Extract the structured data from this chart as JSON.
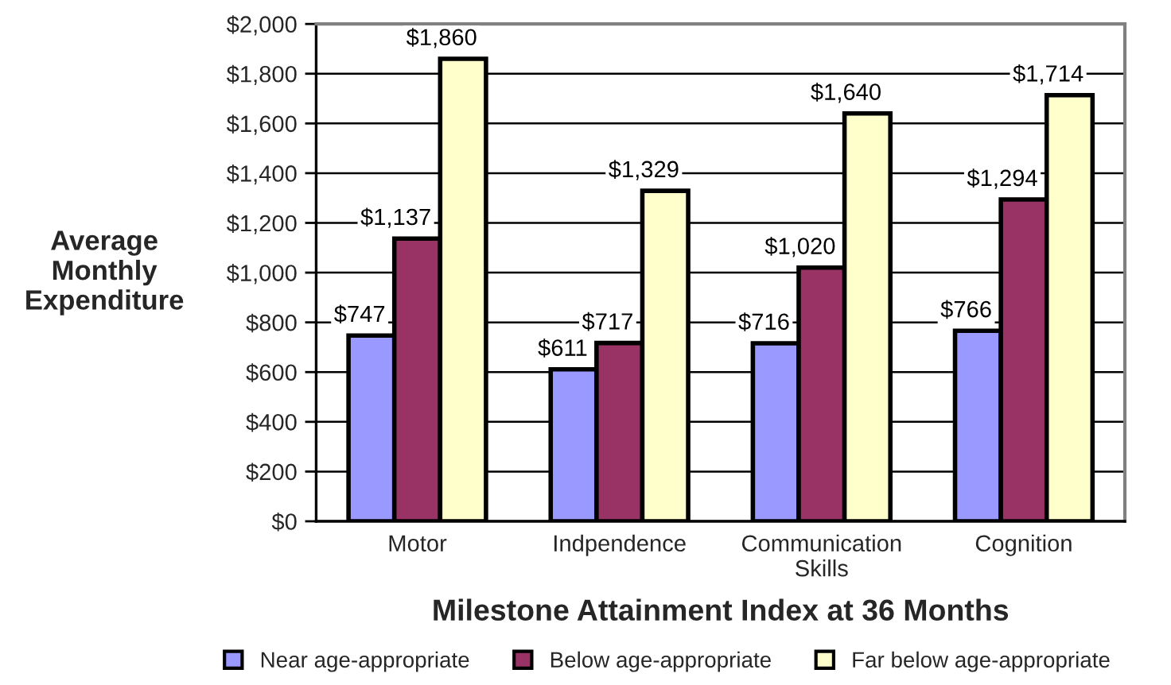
{
  "chart_data": {
    "type": "bar",
    "xlabel": "Milestone Attainment Index at 36 Months",
    "ylabel": "Average Monthly Expenditure",
    "categories": [
      "Motor",
      "Indpendence",
      "Communication Skills",
      "Cognition"
    ],
    "series": [
      {
        "name": "Near age-appropriate",
        "color": "#9999ff",
        "values": [
          747,
          611,
          716,
          766
        ],
        "value_labels": [
          "$747",
          "$611",
          "$716",
          "$766"
        ]
      },
      {
        "name": "Below age-appropriate",
        "color": "#993366",
        "values": [
          1137,
          717,
          1020,
          1294
        ],
        "value_labels": [
          "$1,137",
          "$717",
          "$1,020",
          "$1,294"
        ]
      },
      {
        "name": "Far below age-appropriate",
        "color": "#ffffcc",
        "values": [
          1860,
          1329,
          1640,
          1714
        ],
        "value_labels": [
          "$1,860",
          "$1,329",
          "$1,640",
          "$1,714"
        ]
      }
    ],
    "ylim": [
      0,
      2000
    ],
    "yticks": [
      {
        "value": 0,
        "label": "$0"
      },
      {
        "value": 200,
        "label": "$200"
      },
      {
        "value": 400,
        "label": "$400"
      },
      {
        "value": 600,
        "label": "$600"
      },
      {
        "value": 800,
        "label": "$800"
      },
      {
        "value": 1000,
        "label": "$1,000"
      },
      {
        "value": 1200,
        "label": "$1,200"
      },
      {
        "value": 1400,
        "label": "$1,400"
      },
      {
        "value": 1600,
        "label": "$1,600"
      },
      {
        "value": 1800,
        "label": "$1,800"
      },
      {
        "value": 2000,
        "label": "$2,000"
      }
    ],
    "grid": "y",
    "legend": "bottom"
  }
}
